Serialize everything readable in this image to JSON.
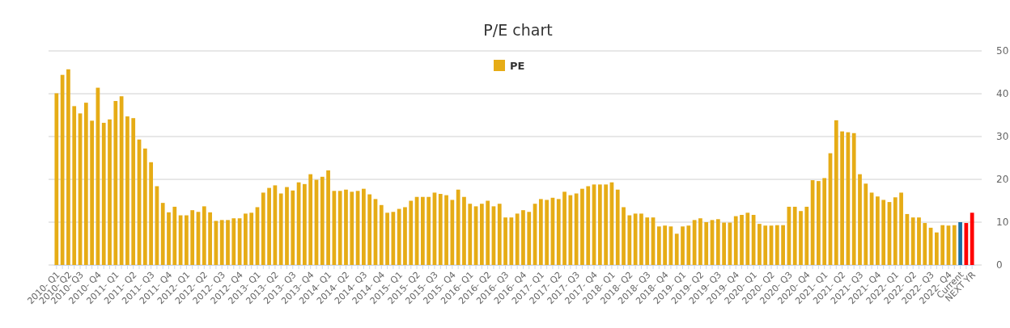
{
  "chart_data": {
    "type": "bar",
    "title": "P/E chart",
    "categories": [
      "2010- Q1",
      null,
      "2010- Q2",
      null,
      "2010- Q3",
      null,
      null,
      "2010- Q4",
      null,
      null,
      "2011- Q1",
      null,
      null,
      "2011- Q2",
      null,
      null,
      "2011- Q3",
      null,
      null,
      "2011- Q4",
      null,
      null,
      "2012- Q1",
      null,
      null,
      "2012- Q2",
      null,
      null,
      "2012- Q3",
      null,
      null,
      "2012- Q4",
      null,
      null,
      "2013- Q1",
      null,
      null,
      "2013- Q2",
      null,
      null,
      "2013- Q3",
      null,
      null,
      "2013- Q4",
      null,
      null,
      "2014- Q1",
      null,
      null,
      "2014- Q2",
      null,
      null,
      "2014- Q3",
      null,
      null,
      "2014- Q4",
      null,
      null,
      "2015- Q1",
      null,
      null,
      "2015- Q2",
      null,
      null,
      "2015- Q3",
      null,
      null,
      "2015- Q4",
      null,
      null,
      "2016- Q1",
      null,
      null,
      "2016- Q2",
      null,
      null,
      "2016- Q3",
      null,
      null,
      "2016- Q4",
      null,
      null,
      "2017- Q1",
      null,
      null,
      "2017- Q2",
      null,
      null,
      "2017- Q3",
      null,
      null,
      "2017- Q4",
      null,
      null,
      "2018- Q1",
      null,
      null,
      "2018- Q2",
      null,
      null,
      "2018- Q3",
      null,
      null,
      "2018- Q4",
      null,
      null,
      "2019- Q1",
      null,
      null,
      "2019- Q2",
      null,
      null,
      "2019- Q3",
      null,
      null,
      "2019- Q4",
      null,
      null,
      "2020- Q1",
      null,
      null,
      "2020- Q2",
      null,
      null,
      "2020- Q3",
      null,
      null,
      "2020- Q4",
      null,
      null,
      "2021- Q1",
      null,
      null,
      "2021- Q2",
      null,
      null,
      "2021- Q3",
      null,
      null,
      "2021- Q4",
      null,
      null,
      "2022- Q1",
      null,
      null,
      "2022- Q2",
      null,
      null,
      "2022- Q3",
      null,
      null,
      "2022- Q4",
      null,
      "Current",
      null,
      "NEXT YR"
    ],
    "series": [
      {
        "name": "PE",
        "color": "#e6ac16",
        "values": [
          40.1,
          44.4,
          45.7,
          37.1,
          35.4,
          37.9,
          33.7,
          41.4,
          33.2,
          34.0,
          38.3,
          39.4,
          34.7,
          34.3,
          29.3,
          27.2,
          24.0,
          18.4,
          14.5,
          12.3,
          13.6,
          11.6,
          11.6,
          12.8,
          12.4,
          13.7,
          12.3,
          10.3,
          10.5,
          10.5,
          10.9,
          10.9,
          12.0,
          12.2,
          13.5,
          16.9,
          18.0,
          18.6,
          16.7,
          18.2,
          17.4,
          19.3,
          18.9,
          21.2,
          19.9,
          20.6,
          22.1,
          17.3,
          17.3,
          17.6,
          17.1,
          17.3,
          17.8,
          16.5,
          15.4,
          14.0,
          12.2,
          12.4,
          13.1,
          13.5,
          15.0,
          15.9,
          15.9,
          15.9,
          16.9,
          16.6,
          16.3,
          15.2,
          17.6,
          15.9,
          14.3,
          13.7,
          14.3,
          15.0,
          13.7,
          14.3,
          11.1,
          11.1,
          12.0,
          12.8,
          12.4,
          14.3,
          15.4,
          15.2,
          15.7,
          15.4,
          17.1,
          16.3,
          16.7,
          17.8,
          18.4,
          18.8,
          18.8,
          18.8,
          19.3,
          17.6,
          13.5,
          11.6,
          12.0,
          12.0,
          11.1,
          11.1,
          9.0,
          9.2,
          9.0,
          7.3,
          9.0,
          9.2,
          10.5,
          10.9,
          10.0,
          10.5,
          10.7,
          9.9,
          9.9,
          11.4,
          11.7,
          12.2,
          11.7,
          9.6,
          9.2,
          9.2,
          9.3,
          9.3,
          13.6,
          13.6,
          12.6,
          13.6,
          19.8,
          19.6,
          20.3,
          26.1,
          33.8,
          31.2,
          31.0,
          30.8,
          21.2,
          19.0,
          16.9,
          16.0,
          15.2,
          14.7,
          15.8,
          16.9,
          11.9,
          11.1,
          11.1,
          9.8,
          8.7,
          7.6,
          9.3,
          9.2,
          9.3,
          10.0,
          9.8,
          12.2
        ],
        "colors": [
          "#e6ac16",
          "#e6ac16",
          "#e6ac16",
          "#e6ac16",
          "#e6ac16",
          "#e6ac16",
          "#e6ac16",
          "#e6ac16",
          "#e6ac16",
          "#e6ac16",
          "#e6ac16",
          "#e6ac16",
          "#e6ac16",
          "#e6ac16",
          "#e6ac16",
          "#e6ac16",
          "#e6ac16",
          "#e6ac16",
          "#e6ac16",
          "#e6ac16",
          "#e6ac16",
          "#e6ac16",
          "#e6ac16",
          "#e6ac16",
          "#e6ac16",
          "#e6ac16",
          "#e6ac16",
          "#e6ac16",
          "#e6ac16",
          "#e6ac16",
          "#e6ac16",
          "#e6ac16",
          "#e6ac16",
          "#e6ac16",
          "#e6ac16",
          "#e6ac16",
          "#e6ac16",
          "#e6ac16",
          "#e6ac16",
          "#e6ac16",
          "#e6ac16",
          "#e6ac16",
          "#e6ac16",
          "#e6ac16",
          "#e6ac16",
          "#e6ac16",
          "#e6ac16",
          "#e6ac16",
          "#e6ac16",
          "#e6ac16",
          "#e6ac16",
          "#e6ac16",
          "#e6ac16",
          "#e6ac16",
          "#e6ac16",
          "#e6ac16",
          "#e6ac16",
          "#e6ac16",
          "#e6ac16",
          "#e6ac16",
          "#e6ac16",
          "#e6ac16",
          "#e6ac16",
          "#e6ac16",
          "#e6ac16",
          "#e6ac16",
          "#e6ac16",
          "#e6ac16",
          "#e6ac16",
          "#e6ac16",
          "#e6ac16",
          "#e6ac16",
          "#e6ac16",
          "#e6ac16",
          "#e6ac16",
          "#e6ac16",
          "#e6ac16",
          "#e6ac16",
          "#e6ac16",
          "#e6ac16",
          "#e6ac16",
          "#e6ac16",
          "#e6ac16",
          "#e6ac16",
          "#e6ac16",
          "#e6ac16",
          "#e6ac16",
          "#e6ac16",
          "#e6ac16",
          "#e6ac16",
          "#e6ac16",
          "#e6ac16",
          "#e6ac16",
          "#e6ac16",
          "#e6ac16",
          "#e6ac16",
          "#e6ac16",
          "#e6ac16",
          "#e6ac16",
          "#e6ac16",
          "#e6ac16",
          "#e6ac16",
          "#e6ac16",
          "#e6ac16",
          "#e6ac16",
          "#e6ac16",
          "#e6ac16",
          "#e6ac16",
          "#e6ac16",
          "#e6ac16",
          "#e6ac16",
          "#e6ac16",
          "#e6ac16",
          "#e6ac16",
          "#e6ac16",
          "#e6ac16",
          "#e6ac16",
          "#e6ac16",
          "#e6ac16",
          "#e6ac16",
          "#e6ac16",
          "#e6ac16",
          "#e6ac16",
          "#e6ac16",
          "#e6ac16",
          "#e6ac16",
          "#e6ac16",
          "#e6ac16",
          "#e6ac16",
          "#e6ac16",
          "#e6ac16",
          "#e6ac16",
          "#e6ac16",
          "#e6ac16",
          "#e6ac16",
          "#e6ac16",
          "#e6ac16",
          "#e6ac16",
          "#e6ac16",
          "#e6ac16",
          "#e6ac16",
          "#e6ac16",
          "#e6ac16",
          "#e6ac16",
          "#e6ac16",
          "#e6ac16",
          "#e6ac16",
          "#e6ac16",
          "#e6ac16",
          "#e6ac16",
          "#e6ac16",
          "#e6ac16",
          "#e6ac16",
          "#1a6fa3",
          "#ff0000",
          "#ff0000"
        ]
      }
    ],
    "ylim": [
      0,
      50
    ],
    "yticks": [
      0,
      10,
      20,
      30,
      40,
      50
    ],
    "grid": "y",
    "legend": "top"
  }
}
